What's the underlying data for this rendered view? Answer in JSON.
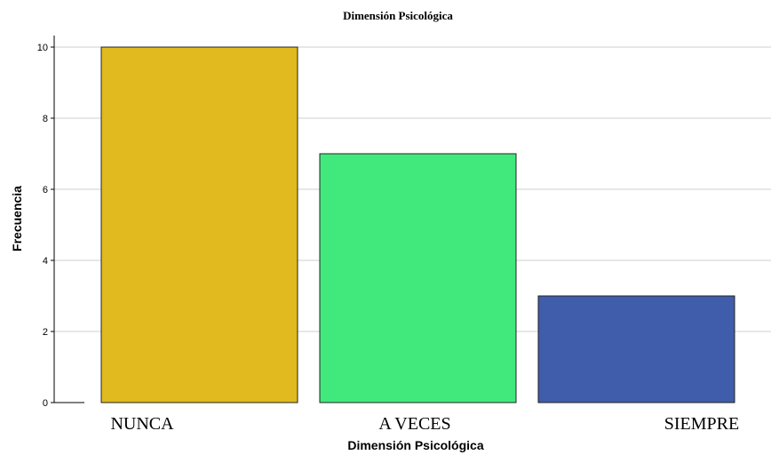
{
  "chart_data": {
    "type": "bar",
    "title": "Dimensión Psicológica",
    "xlabel": "Dimensión Psicológica",
    "ylabel": "Frecuencia",
    "categories": [
      "NUNCA",
      "A VECES",
      "SIEMPRE"
    ],
    "values": [
      10,
      7,
      3
    ],
    "colors": [
      "#E0BA1E",
      "#41E97D",
      "#3F5DAA"
    ],
    "ylim": [
      0,
      10
    ],
    "yticks": [
      "0",
      "2",
      "4",
      "6",
      "8",
      "10"
    ],
    "grid": true,
    "legend": "none"
  }
}
